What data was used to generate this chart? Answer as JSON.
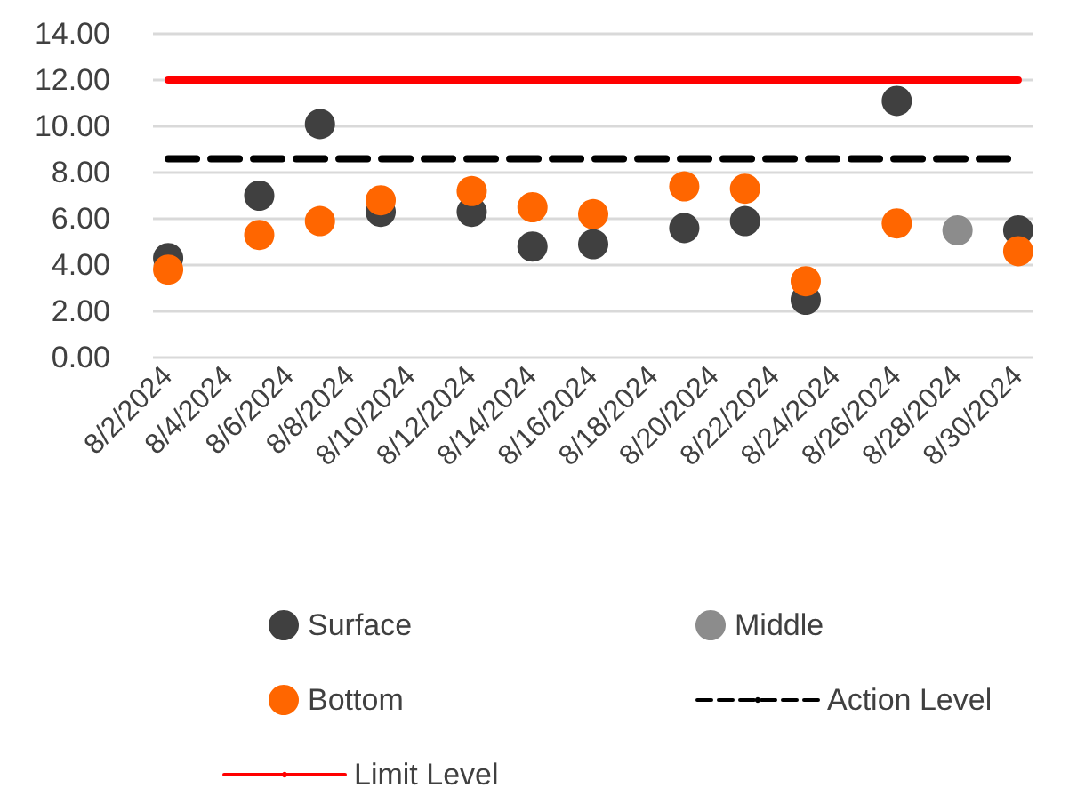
{
  "chart_data": {
    "type": "scatter",
    "xlim": [
      "2024-08-01T12:00",
      "2024-08-30T12:00"
    ],
    "xticks": [
      {
        "value": "2024-08-02",
        "label": "8/2/2024"
      },
      {
        "value": "2024-08-04",
        "label": "8/4/2024"
      },
      {
        "value": "2024-08-06",
        "label": "8/6/2024"
      },
      {
        "value": "2024-08-08",
        "label": "8/8/2024"
      },
      {
        "value": "2024-08-10",
        "label": "8/10/2024"
      },
      {
        "value": "2024-08-12",
        "label": "8/12/2024"
      },
      {
        "value": "2024-08-14",
        "label": "8/14/2024"
      },
      {
        "value": "2024-08-16",
        "label": "8/16/2024"
      },
      {
        "value": "2024-08-18",
        "label": "8/18/2024"
      },
      {
        "value": "2024-08-20",
        "label": "8/20/2024"
      },
      {
        "value": "2024-08-22",
        "label": "8/22/2024"
      },
      {
        "value": "2024-08-24",
        "label": "8/24/2024"
      },
      {
        "value": "2024-08-26",
        "label": "8/26/2024"
      },
      {
        "value": "2024-08-28",
        "label": "8/28/2024"
      },
      {
        "value": "2024-08-30",
        "label": "8/30/2024"
      }
    ],
    "ylim": [
      0,
      14
    ],
    "yticks": [
      {
        "value": 0,
        "label": "0.00"
      },
      {
        "value": 2,
        "label": "2.00"
      },
      {
        "value": 4,
        "label": "4.00"
      },
      {
        "value": 6,
        "label": "6.00"
      },
      {
        "value": 8,
        "label": "8.00"
      },
      {
        "value": 10,
        "label": "10.00"
      },
      {
        "value": 12,
        "label": "12.00"
      },
      {
        "value": 14,
        "label": "14.00"
      }
    ],
    "grid": "y",
    "legend": "bottom",
    "marker": "circle",
    "series": [
      {
        "name": "Surface",
        "color": "#404040",
        "x": [
          "2024-08-02",
          "2024-08-05",
          "2024-08-07",
          "2024-08-09",
          "2024-08-12",
          "2024-08-14",
          "2024-08-16",
          "2024-08-19",
          "2024-08-21",
          "2024-08-23",
          "2024-08-26",
          "2024-08-30"
        ],
        "values": [
          4.3,
          7.0,
          10.1,
          6.3,
          6.3,
          4.8,
          4.9,
          5.6,
          5.9,
          2.5,
          11.1,
          5.5
        ]
      },
      {
        "name": "Middle",
        "color": "#8c8c8c",
        "x": [
          "2024-08-28"
        ],
        "values": [
          5.5
        ]
      },
      {
        "name": "Bottom",
        "color": "#ff6600",
        "x": [
          "2024-08-02",
          "2024-08-05",
          "2024-08-07",
          "2024-08-09",
          "2024-08-12",
          "2024-08-14",
          "2024-08-16",
          "2024-08-19",
          "2024-08-21",
          "2024-08-23",
          "2024-08-26",
          "2024-08-30"
        ],
        "values": [
          3.8,
          5.3,
          5.9,
          6.8,
          7.2,
          6.5,
          6.2,
          7.4,
          7.3,
          3.3,
          5.8,
          4.6
        ]
      },
      {
        "name": "Action Level",
        "type": "line",
        "line_style": "dashed",
        "marker": "none",
        "color": "#000000",
        "x": [
          "2024-08-02",
          "2024-08-30"
        ],
        "values": [
          8.6,
          8.6
        ]
      },
      {
        "name": "Limit Level",
        "type": "line",
        "line_style": "solid",
        "marker": "none",
        "color": "#ff0000",
        "x": [
          "2024-08-02",
          "2024-08-30"
        ],
        "values": [
          12,
          12
        ]
      }
    ]
  }
}
